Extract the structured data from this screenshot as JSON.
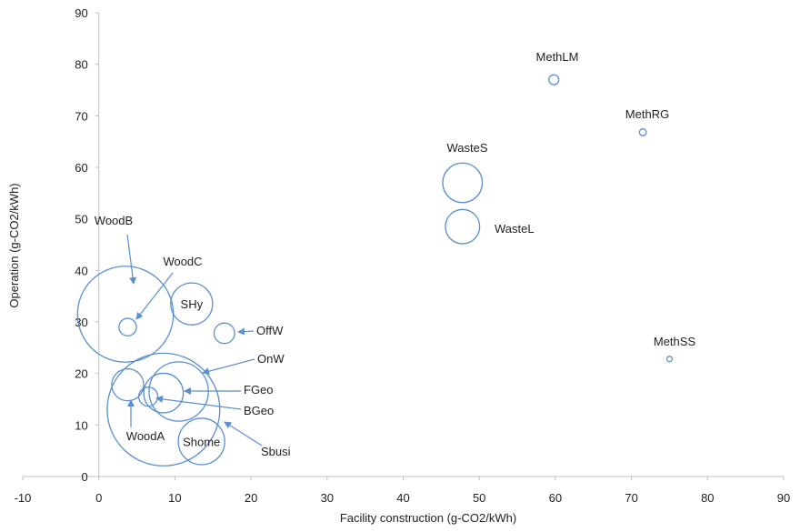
{
  "chart_data": {
    "type": "bubble",
    "xlabel": "Facility construction (g-CO2/kWh)",
    "ylabel": "Operation (g-CO2/kWh)",
    "xlim": [
      -10,
      90
    ],
    "ylim": [
      0,
      90
    ],
    "x_ticks": [
      "-10",
      "0",
      "10",
      "20",
      "30",
      "40",
      "50",
      "60",
      "70",
      "80",
      "90"
    ],
    "y_ticks": [
      "0",
      "10",
      "20",
      "30",
      "40",
      "50",
      "60",
      "70",
      "80",
      "90"
    ],
    "grid": false,
    "bubble_color": "#5b8fd0",
    "points": [
      {
        "label": "WoodB",
        "x": 3.5,
        "y": 31.5,
        "size": 6.3
      },
      {
        "label": "WoodC",
        "x": 3.8,
        "y": 29.0,
        "size": 1.15
      },
      {
        "label": "SHy",
        "x": 12.2,
        "y": 33.5,
        "size": 2.75
      },
      {
        "label": "OffW",
        "x": 16.5,
        "y": 27.8,
        "size": 1.35
      },
      {
        "label": "OnW",
        "x": 8.5,
        "y": 13.0,
        "size": 7.4
      },
      {
        "label": "WoodA",
        "x": 3.8,
        "y": 17.8,
        "size": 2.1
      },
      {
        "label": "FGeo",
        "x": 10.5,
        "y": 16.5,
        "size": 3.9
      },
      {
        "label": "BGeo",
        "x": 6.5,
        "y": 15.5,
        "size": 1.25
      },
      {
        "label": "Shome",
        "x": 13.5,
        "y": 6.8,
        "size": 3.05
      },
      {
        "label": "Sbusi",
        "x": 8.5,
        "y": 16.2,
        "size": 2.6
      },
      {
        "label": "WasteS",
        "x": 47.8,
        "y": 57.0,
        "size": 2.6
      },
      {
        "label": "WasteL",
        "x": 47.8,
        "y": 48.5,
        "size": 2.25
      },
      {
        "label": "MethLM",
        "x": 59.8,
        "y": 77.0,
        "size": 0.65
      },
      {
        "label": "MethRG",
        "x": 71.5,
        "y": 66.8,
        "size": 0.45
      },
      {
        "label": "MethSS",
        "x": 75.0,
        "y": 22.8,
        "size": 0.35
      }
    ]
  }
}
